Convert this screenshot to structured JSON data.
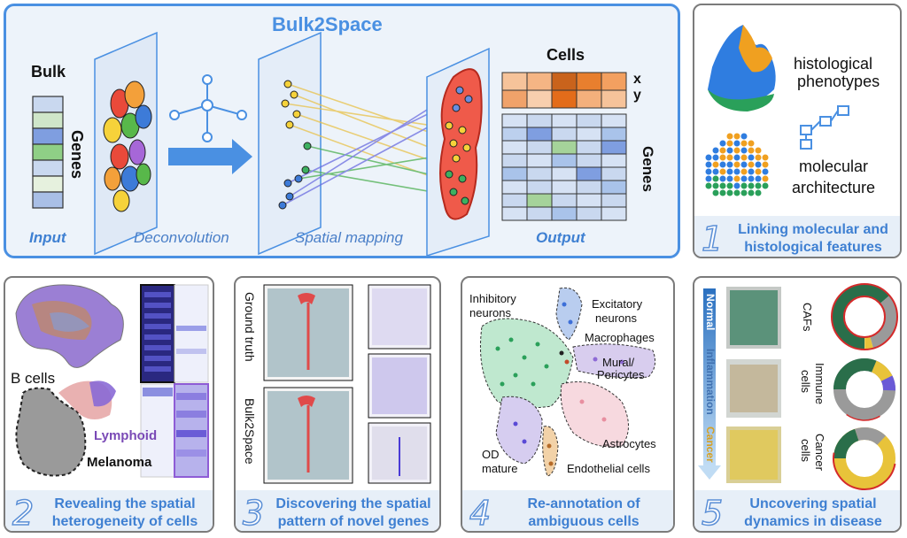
{
  "main": {
    "title": "Bulk2Space",
    "bulk_label": "Bulk",
    "genes_label": "Genes",
    "input_label": "Input",
    "deconvolution_label": "Deconvolution",
    "spatial_mapping_label": "Spatial mapping",
    "output_label": "Output",
    "cells_label": "Cells",
    "x_label": "x",
    "y_label": "y",
    "genes_label_right": "Genes"
  },
  "panel1": {
    "histo_label_1": "histological",
    "histo_label_2": "phenotypes",
    "mol_label_1": "molecular",
    "mol_label_2": "architecture",
    "number": "1",
    "caption_1": "Linking molecular and",
    "caption_2": "histological features"
  },
  "panel2": {
    "b_cells": "B cells",
    "lymphoid": "Lymphoid",
    "melanoma": "Melanoma",
    "number": "2",
    "caption_1": "Revealing the spatial",
    "caption_2": "heterogeneity of cells"
  },
  "panel3": {
    "ground_truth": "Ground truth",
    "bulk2space": "Bulk2Space",
    "number": "3",
    "caption_1": "Discovering the spatial",
    "caption_2": "pattern of novel genes"
  },
  "panel4": {
    "inhibitory_1": "Inhibitory",
    "inhibitory_2": "neurons",
    "excitatory_1": "Excitatory",
    "excitatory_2": "neurons",
    "macrophages": "Macrophages",
    "mural_1": "Mural/",
    "mural_2": "Pericytes",
    "od_1": "OD",
    "od_2": "mature",
    "astrocytes": "Astrocytes",
    "endothelial": "Endothelial cells",
    "number": "4",
    "caption_1": "Re-annotation of",
    "caption_2": "ambiguous cells"
  },
  "panel5": {
    "normal": "Normal",
    "inflammation": "Inflammation",
    "cancer": "Cancer",
    "cafs": "CAFs",
    "immune_1": "Immune",
    "immune_2": "cells",
    "cancer_cells_1": "Cancer",
    "cancer_cells_2": "cells",
    "number": "5",
    "caption_1": "Uncovering spatial",
    "caption_2": "dynamics in disease"
  },
  "colors": {
    "accent_blue": "#4a90e2",
    "caption_blue": "#3f80d2",
    "green": "#2aa05a",
    "orange": "#f0a020",
    "purple": "#7b5cd6"
  }
}
